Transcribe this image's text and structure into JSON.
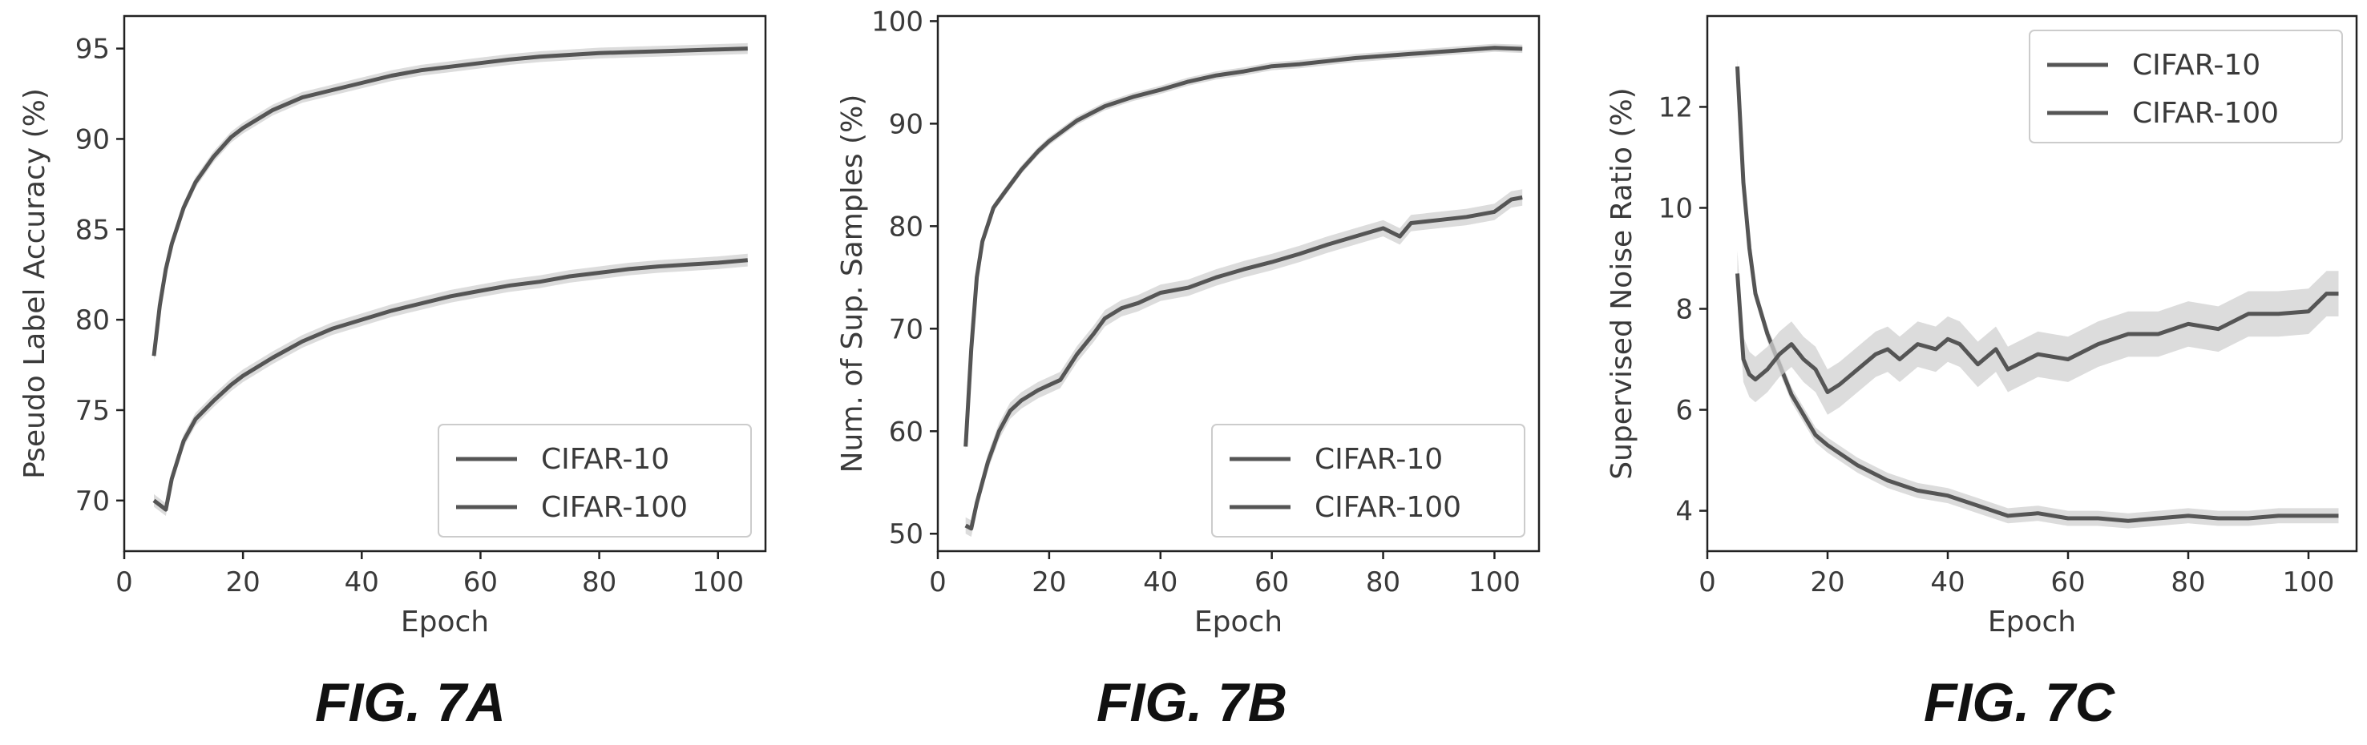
{
  "figures": [
    {
      "caption": "FIG. 7A"
    },
    {
      "caption": "FIG. 7B"
    },
    {
      "caption": "FIG. 7C"
    }
  ],
  "colors": {
    "line": "#555555",
    "band": "#d0d0d0",
    "axis": "#222222",
    "text": "#3a3a3a"
  },
  "chart_data": [
    {
      "type": "line",
      "xlabel": "Epoch",
      "ylabel": "Pseudo Label Accuracy (%)",
      "xlim": [
        0,
        108
      ],
      "ylim": [
        67.2,
        96.8
      ],
      "xticks": [
        0,
        20,
        40,
        60,
        80,
        100
      ],
      "yticks": [
        70,
        75,
        80,
        85,
        90,
        95
      ],
      "legend": "bottom-right",
      "series": [
        {
          "name": "CIFAR-10",
          "x": [
            5,
            6,
            7,
            8,
            10,
            12,
            15,
            18,
            20,
            25,
            30,
            35,
            40,
            45,
            50,
            55,
            60,
            65,
            70,
            75,
            80,
            85,
            90,
            95,
            100,
            105
          ],
          "y": [
            78.0,
            80.8,
            82.8,
            84.2,
            86.2,
            87.6,
            89.0,
            90.1,
            90.6,
            91.6,
            92.3,
            92.7,
            93.1,
            93.5,
            93.8,
            94.0,
            94.2,
            94.4,
            94.55,
            94.65,
            94.75,
            94.8,
            94.85,
            94.9,
            94.95,
            95.0
          ],
          "band": 0.3
        },
        {
          "name": "CIFAR-100",
          "x": [
            5,
            7,
            8,
            10,
            12,
            15,
            18,
            20,
            25,
            30,
            35,
            40,
            45,
            50,
            55,
            60,
            65,
            70,
            75,
            80,
            85,
            90,
            95,
            100,
            105
          ],
          "y": [
            70.0,
            69.5,
            71.2,
            73.3,
            74.5,
            75.5,
            76.4,
            76.9,
            77.9,
            78.8,
            79.5,
            80.0,
            80.5,
            80.9,
            81.3,
            81.6,
            81.9,
            82.1,
            82.4,
            82.6,
            82.8,
            82.95,
            83.05,
            83.15,
            83.3
          ],
          "band": 0.35
        }
      ]
    },
    {
      "type": "line",
      "xlabel": "Epoch",
      "ylabel": "Num. of Sup. Samples (%)",
      "xlim": [
        0,
        108
      ],
      "ylim": [
        48.3,
        100.5
      ],
      "xticks": [
        0,
        20,
        40,
        60,
        80,
        100
      ],
      "yticks": [
        50,
        60,
        70,
        80,
        90,
        100
      ],
      "legend": "bottom-right",
      "series": [
        {
          "name": "CIFAR-10",
          "x": [
            5,
            6,
            7,
            8,
            10,
            12,
            15,
            18,
            20,
            25,
            30,
            35,
            40,
            45,
            50,
            55,
            60,
            65,
            70,
            75,
            80,
            85,
            90,
            95,
            100,
            105
          ],
          "y": [
            58.5,
            68.0,
            75.0,
            78.5,
            81.8,
            83.3,
            85.5,
            87.3,
            88.3,
            90.3,
            91.7,
            92.6,
            93.3,
            94.1,
            94.7,
            95.1,
            95.6,
            95.8,
            96.1,
            96.4,
            96.6,
            96.8,
            97.0,
            97.2,
            97.4,
            97.3
          ],
          "band": 0.4
        },
        {
          "name": "CIFAR-100",
          "x": [
            5,
            6,
            7,
            9,
            11,
            13,
            15,
            18,
            20,
            22,
            25,
            28,
            30,
            33,
            36,
            40,
            45,
            50,
            55,
            60,
            65,
            70,
            75,
            80,
            83,
            85,
            90,
            95,
            100,
            103,
            105
          ],
          "y": [
            50.8,
            50.5,
            53.0,
            57.0,
            60.0,
            62.0,
            63.0,
            64.0,
            64.5,
            65.0,
            67.5,
            69.5,
            71.0,
            72.0,
            72.5,
            73.5,
            74.0,
            75.0,
            75.8,
            76.5,
            77.3,
            78.2,
            79.0,
            79.8,
            79.0,
            80.3,
            80.6,
            80.9,
            81.4,
            82.6,
            82.8
          ],
          "band": 0.8
        }
      ]
    },
    {
      "type": "line",
      "xlabel": "Epoch",
      "ylabel": "Supervised Noise Ratio (%)",
      "xlim": [
        0,
        108
      ],
      "ylim": [
        3.2,
        13.8
      ],
      "xticks": [
        0,
        20,
        40,
        60,
        80,
        100
      ],
      "yticks": [
        4,
        6,
        8,
        10,
        12
      ],
      "legend": "top-right",
      "series": [
        {
          "name": "CIFAR-10",
          "x": [
            5,
            6,
            7,
            8,
            10,
            12,
            14,
            16,
            18,
            20,
            25,
            30,
            35,
            40,
            45,
            50,
            55,
            60,
            65,
            70,
            75,
            80,
            85,
            90,
            95,
            100,
            105
          ],
          "y": [
            12.8,
            10.5,
            9.2,
            8.3,
            7.5,
            6.9,
            6.3,
            5.9,
            5.5,
            5.3,
            4.9,
            4.6,
            4.4,
            4.3,
            4.1,
            3.9,
            3.95,
            3.85,
            3.85,
            3.8,
            3.85,
            3.9,
            3.85,
            3.85,
            3.9,
            3.9,
            3.9
          ],
          "band": 0.15
        },
        {
          "name": "CIFAR-100",
          "x": [
            5,
            6,
            7,
            8,
            10,
            12,
            14,
            16,
            18,
            20,
            22,
            25,
            28,
            30,
            32,
            35,
            38,
            40,
            42,
            45,
            48,
            50,
            55,
            60,
            65,
            70,
            75,
            80,
            85,
            90,
            95,
            100,
            103,
            105
          ],
          "y": [
            8.7,
            7.0,
            6.7,
            6.6,
            6.8,
            7.1,
            7.3,
            7.0,
            6.8,
            6.35,
            6.5,
            6.8,
            7.1,
            7.2,
            7.0,
            7.3,
            7.2,
            7.4,
            7.3,
            6.9,
            7.2,
            6.8,
            7.1,
            7.0,
            7.3,
            7.5,
            7.5,
            7.7,
            7.6,
            7.9,
            7.9,
            7.95,
            8.3,
            8.3
          ],
          "band": 0.45
        }
      ]
    }
  ]
}
